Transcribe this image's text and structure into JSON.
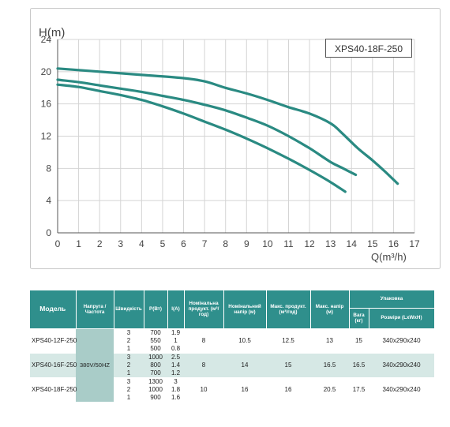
{
  "chart_data": {
    "type": "line",
    "legend_box_text": "XPS40-18F-250",
    "ylabel": "H(m)",
    "xlabel": "Q(m³/h)",
    "xlim": [
      0,
      17
    ],
    "ylim": [
      0,
      24
    ],
    "xticks": [
      0,
      1,
      2,
      3,
      4,
      5,
      6,
      7,
      8,
      9,
      10,
      11,
      12,
      13,
      14,
      15,
      16,
      17
    ],
    "yticks": [
      0,
      4,
      8,
      12,
      16,
      20,
      24
    ],
    "grid": true,
    "colors": {
      "curve": "#2a8a82",
      "grid": "#d4d4d4",
      "axis": "#555555"
    },
    "series": [
      {
        "x": [
          0,
          2,
          4,
          6,
          7,
          8,
          9,
          10,
          11,
          12,
          13,
          13.5,
          14.3,
          15,
          15.6,
          16.2
        ],
        "y": [
          20.4,
          20.0,
          19.6,
          19.2,
          18.8,
          18.0,
          17.3,
          16.5,
          15.6,
          14.8,
          13.6,
          12.5,
          10.5,
          9.0,
          7.6,
          6.1
        ]
      },
      {
        "x": [
          0,
          1,
          2,
          3,
          4,
          5,
          6,
          7,
          8,
          9,
          10,
          11,
          12,
          13,
          13.6,
          14.2
        ],
        "y": [
          19.0,
          18.7,
          18.3,
          17.9,
          17.5,
          17.0,
          16.5,
          15.9,
          15.2,
          14.3,
          13.3,
          12.0,
          10.5,
          8.8,
          8.0,
          7.2
        ]
      },
      {
        "x": [
          0,
          1,
          2,
          3,
          4,
          5,
          6,
          7,
          8,
          9,
          10,
          11,
          12,
          13,
          13.7
        ],
        "y": [
          18.4,
          18.1,
          17.6,
          17.1,
          16.5,
          15.7,
          14.8,
          13.8,
          12.8,
          11.7,
          10.5,
          9.2,
          7.8,
          6.3,
          5.1
        ]
      }
    ]
  },
  "table": {
    "headers": {
      "model": "Модель",
      "voltage": "Напруга /Частота",
      "speed": "Швидкість",
      "power": "P(Вт)",
      "current": "I(A)",
      "nominal_flow": "Номінальна продукт. (м³/год)",
      "nominal_head": "Номінальний напір (м)",
      "max_flow": "Макс. продукт. (м³/год)",
      "max_head": "Макс. напір (м)",
      "packaging": "Упаковка",
      "weight": "Вага (кг)",
      "size": "Розміри (LxWxH)"
    },
    "voltage_value": "380V/50HZ",
    "models": [
      {
        "name": "XPS40-12F-250",
        "nominal_flow": "8",
        "nominal_head": "10.5",
        "max_flow": "12.5",
        "max_head": "13",
        "weight": "15",
        "size": "340x290x240",
        "speeds": [
          {
            "speed": "3",
            "power": "700",
            "current": "1.9"
          },
          {
            "speed": "2",
            "power": "550",
            "current": "1"
          },
          {
            "speed": "1",
            "power": "500",
            "current": "0.8"
          }
        ]
      },
      {
        "name": "XPS40-16F-250",
        "nominal_flow": "8",
        "nominal_head": "14",
        "max_flow": "15",
        "max_head": "16.5",
        "weight": "16.5",
        "size": "340x290x240",
        "speeds": [
          {
            "speed": "3",
            "power": "1000",
            "current": "2.5"
          },
          {
            "speed": "2",
            "power": "800",
            "current": "1.4"
          },
          {
            "speed": "1",
            "power": "700",
            "current": "1.2"
          }
        ]
      },
      {
        "name": "XPS40-18F-250",
        "nominal_flow": "10",
        "nominal_head": "16",
        "max_flow": "16",
        "max_head": "20.5",
        "weight": "17.5",
        "size": "340x290x240",
        "speeds": [
          {
            "speed": "3",
            "power": "1300",
            "current": "3"
          },
          {
            "speed": "2",
            "power": "1000",
            "current": "1.8"
          },
          {
            "speed": "1",
            "power": "900",
            "current": "1.6"
          }
        ]
      }
    ]
  }
}
